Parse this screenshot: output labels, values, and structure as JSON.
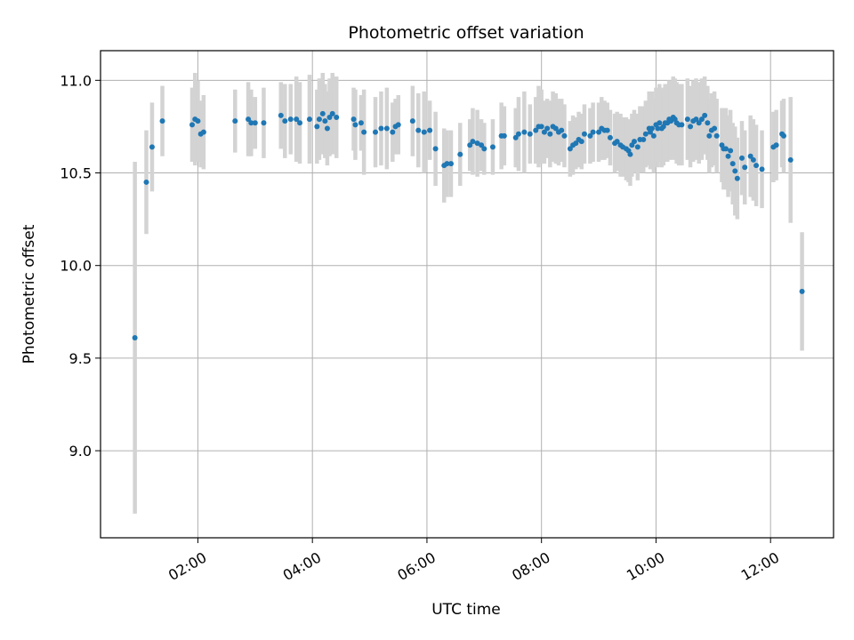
{
  "chart_data": {
    "type": "scatter",
    "title": "Photometric offset variation",
    "xlabel": "UTC time",
    "ylabel": "Photometric offset",
    "xlim": [
      0.3,
      13.1
    ],
    "ylim": [
      8.53,
      11.16
    ],
    "xticks": [
      {
        "value": 2,
        "label": "02:00"
      },
      {
        "value": 4,
        "label": "04:00"
      },
      {
        "value": 6,
        "label": "06:00"
      },
      {
        "value": 8,
        "label": "08:00"
      },
      {
        "value": 10,
        "label": "10:00"
      },
      {
        "value": 12,
        "label": "12:00"
      }
    ],
    "yticks": [
      {
        "value": 9.0,
        "label": "9.0"
      },
      {
        "value": 9.5,
        "label": "9.5"
      },
      {
        "value": 10.0,
        "label": "10.0"
      },
      {
        "value": 10.5,
        "label": "10.5"
      },
      {
        "value": 11.0,
        "label": "11.0"
      }
    ],
    "grid": true,
    "colors": {
      "points": "#1f77b4",
      "errorbars": "#d3d3d3",
      "grid": "#b0b0b0",
      "axes": "#000000"
    },
    "series": [
      {
        "name": "offset",
        "points": [
          [
            0.9,
            9.61,
            0.95
          ],
          [
            1.1,
            10.45,
            0.28
          ],
          [
            1.2,
            10.64,
            0.24
          ],
          [
            1.38,
            10.78,
            0.19
          ],
          [
            1.9,
            10.76,
            0.2
          ],
          [
            1.95,
            10.79,
            0.25
          ],
          [
            2.0,
            10.78,
            0.22
          ],
          [
            2.05,
            10.71,
            0.18
          ],
          [
            2.1,
            10.72,
            0.2
          ],
          [
            2.65,
            10.78,
            0.17
          ],
          [
            2.88,
            10.79,
            0.2
          ],
          [
            2.93,
            10.77,
            0.18
          ],
          [
            3.0,
            10.77,
            0.14
          ],
          [
            3.15,
            10.77,
            0.19
          ],
          [
            3.45,
            10.81,
            0.18
          ],
          [
            3.52,
            10.78,
            0.2
          ],
          [
            3.62,
            10.79,
            0.19
          ],
          [
            3.72,
            10.79,
            0.23
          ],
          [
            3.78,
            10.77,
            0.22
          ],
          [
            3.95,
            10.79,
            0.24
          ],
          [
            4.08,
            10.75,
            0.2
          ],
          [
            4.12,
            10.79,
            0.22
          ],
          [
            4.18,
            10.82,
            0.22
          ],
          [
            4.22,
            10.78,
            0.2
          ],
          [
            4.26,
            10.74,
            0.2
          ],
          [
            4.3,
            10.8,
            0.21
          ],
          [
            4.35,
            10.82,
            0.22
          ],
          [
            4.42,
            10.8,
            0.22
          ],
          [
            4.72,
            10.79,
            0.17
          ],
          [
            4.75,
            10.76,
            0.19
          ],
          [
            4.85,
            10.77,
            0.15
          ],
          [
            4.9,
            10.72,
            0.23
          ],
          [
            5.1,
            10.72,
            0.19
          ],
          [
            5.2,
            10.74,
            0.2
          ],
          [
            5.3,
            10.74,
            0.22
          ],
          [
            5.4,
            10.72,
            0.16
          ],
          [
            5.45,
            10.75,
            0.15
          ],
          [
            5.5,
            10.76,
            0.16
          ],
          [
            5.75,
            10.78,
            0.19
          ],
          [
            5.85,
            10.73,
            0.2
          ],
          [
            5.95,
            10.72,
            0.22
          ],
          [
            6.05,
            10.73,
            0.16
          ],
          [
            6.15,
            10.63,
            0.2
          ],
          [
            6.3,
            10.54,
            0.2
          ],
          [
            6.35,
            10.55,
            0.18
          ],
          [
            6.42,
            10.55,
            0.18
          ],
          [
            6.58,
            10.6,
            0.17
          ],
          [
            6.75,
            10.65,
            0.14
          ],
          [
            6.8,
            10.67,
            0.18
          ],
          [
            6.88,
            10.66,
            0.18
          ],
          [
            6.95,
            10.65,
            0.14
          ],
          [
            7.0,
            10.63,
            0.14
          ],
          [
            7.15,
            10.64,
            0.15
          ],
          [
            7.3,
            10.7,
            0.18
          ],
          [
            7.35,
            10.7,
            0.16
          ],
          [
            7.55,
            10.69,
            0.16
          ],
          [
            7.6,
            10.71,
            0.2
          ],
          [
            7.7,
            10.72,
            0.22
          ],
          [
            7.8,
            10.71,
            0.16
          ],
          [
            7.9,
            10.73,
            0.18
          ],
          [
            7.95,
            10.75,
            0.22
          ],
          [
            8.0,
            10.75,
            0.2
          ],
          [
            8.05,
            10.72,
            0.17
          ],
          [
            8.1,
            10.74,
            0.16
          ],
          [
            8.15,
            10.71,
            0.18
          ],
          [
            8.2,
            10.75,
            0.19
          ],
          [
            8.25,
            10.74,
            0.19
          ],
          [
            8.3,
            10.72,
            0.18
          ],
          [
            8.35,
            10.73,
            0.17
          ],
          [
            8.4,
            10.7,
            0.17
          ],
          [
            8.5,
            10.63,
            0.15
          ],
          [
            8.55,
            10.65,
            0.16
          ],
          [
            8.6,
            10.66,
            0.14
          ],
          [
            8.65,
            10.68,
            0.15
          ],
          [
            8.7,
            10.67,
            0.15
          ],
          [
            8.75,
            10.71,
            0.16
          ],
          [
            8.85,
            10.7,
            0.15
          ],
          [
            8.9,
            10.72,
            0.16
          ],
          [
            9.0,
            10.72,
            0.16
          ],
          [
            9.05,
            10.74,
            0.17
          ],
          [
            9.1,
            10.73,
            0.16
          ],
          [
            9.15,
            10.73,
            0.15
          ],
          [
            9.2,
            10.69,
            0.15
          ],
          [
            9.28,
            10.66,
            0.16
          ],
          [
            9.32,
            10.67,
            0.16
          ],
          [
            9.38,
            10.65,
            0.17
          ],
          [
            9.42,
            10.64,
            0.16
          ],
          [
            9.48,
            10.63,
            0.17
          ],
          [
            9.52,
            10.62,
            0.17
          ],
          [
            9.55,
            10.6,
            0.17
          ],
          [
            9.58,
            10.65,
            0.17
          ],
          [
            9.62,
            10.67,
            0.17
          ],
          [
            9.68,
            10.64,
            0.18
          ],
          [
            9.72,
            10.68,
            0.18
          ],
          [
            9.78,
            10.68,
            0.18
          ],
          [
            9.82,
            10.71,
            0.18
          ],
          [
            9.88,
            10.74,
            0.2
          ],
          [
            9.9,
            10.72,
            0.2
          ],
          [
            9.93,
            10.74,
            0.2
          ],
          [
            9.96,
            10.7,
            0.2
          ],
          [
            10.0,
            10.76,
            0.2
          ],
          [
            10.03,
            10.74,
            0.21
          ],
          [
            10.06,
            10.77,
            0.21
          ],
          [
            10.1,
            10.74,
            0.21
          ],
          [
            10.13,
            10.75,
            0.21
          ],
          [
            10.16,
            10.77,
            0.21
          ],
          [
            10.2,
            10.77,
            0.21
          ],
          [
            10.23,
            10.79,
            0.21
          ],
          [
            10.26,
            10.78,
            0.21
          ],
          [
            10.3,
            10.8,
            0.22
          ],
          [
            10.33,
            10.79,
            0.22
          ],
          [
            10.36,
            10.77,
            0.22
          ],
          [
            10.4,
            10.76,
            0.22
          ],
          [
            10.45,
            10.76,
            0.22
          ],
          [
            10.55,
            10.79,
            0.22
          ],
          [
            10.6,
            10.75,
            0.22
          ],
          [
            10.65,
            10.78,
            0.22
          ],
          [
            10.7,
            10.79,
            0.22
          ],
          [
            10.75,
            10.77,
            0.22
          ],
          [
            10.8,
            10.79,
            0.22
          ],
          [
            10.85,
            10.81,
            0.21
          ],
          [
            10.9,
            10.77,
            0.2
          ],
          [
            10.93,
            10.7,
            0.2
          ],
          [
            10.97,
            10.73,
            0.2
          ],
          [
            11.02,
            10.74,
            0.2
          ],
          [
            11.06,
            10.7,
            0.2
          ],
          [
            11.15,
            10.65,
            0.2
          ],
          [
            11.18,
            10.63,
            0.22
          ],
          [
            11.22,
            10.63,
            0.22
          ],
          [
            11.26,
            10.59,
            0.22
          ],
          [
            11.3,
            10.62,
            0.22
          ],
          [
            11.34,
            10.55,
            0.22
          ],
          [
            11.38,
            10.51,
            0.24
          ],
          [
            11.42,
            10.47,
            0.22
          ],
          [
            11.5,
            10.58,
            0.2
          ],
          [
            11.55,
            10.53,
            0.2
          ],
          [
            11.65,
            10.59,
            0.22
          ],
          [
            11.7,
            10.57,
            0.22
          ],
          [
            11.75,
            10.54,
            0.22
          ],
          [
            11.85,
            10.52,
            0.21
          ],
          [
            12.05,
            10.64,
            0.19
          ],
          [
            12.1,
            10.65,
            0.19
          ],
          [
            12.2,
            10.71,
            0.18
          ],
          [
            12.23,
            10.7,
            0.2
          ],
          [
            12.35,
            10.57,
            0.34
          ],
          [
            12.55,
            9.86,
            0.32
          ]
        ]
      }
    ]
  }
}
